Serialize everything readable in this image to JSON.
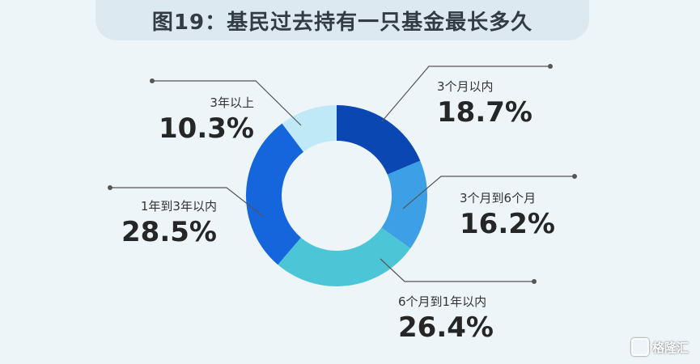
{
  "chart_data": {
    "type": "pie",
    "title": "图19：基民过去持有一只基金最长多久",
    "slices": [
      {
        "label": "3个月以内",
        "value": 18.7,
        "display": "18.7%",
        "color": "#0a47b3"
      },
      {
        "label": "3个月到6个月",
        "value": 16.2,
        "display": "16.2%",
        "color": "#3d9fe6"
      },
      {
        "label": "6个月到1年以内",
        "value": 26.4,
        "display": "26.4%",
        "color": "#4cc6d6"
      },
      {
        "label": "1年到3年以内",
        "value": 28.5,
        "display": "28.5%",
        "color": "#1566dd"
      },
      {
        "label": "3年以上",
        "value": 10.3,
        "display": "10.3%",
        "color": "#bfe9f7"
      }
    ]
  },
  "watermark": "格隆汇"
}
